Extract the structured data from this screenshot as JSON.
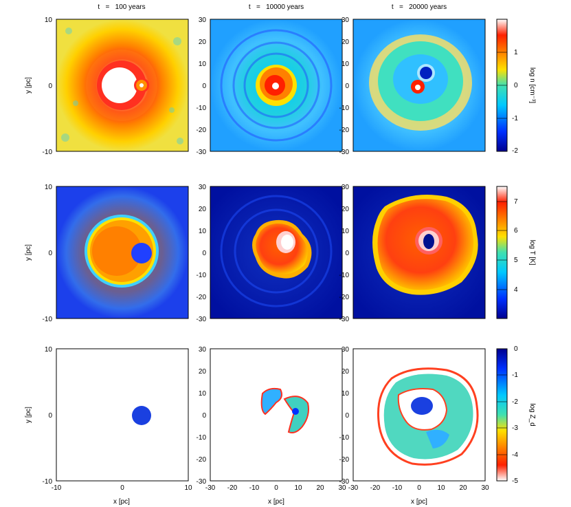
{
  "colors": {
    "density_bar": [
      "#00008f",
      "#0030ff",
      "#00c8ff",
      "#40e0b0",
      "#ffe000",
      "#ff8000",
      "#ff2000",
      "#ffffff"
    ],
    "temp_bar": [
      "#00008f",
      "#0030ff",
      "#00c8ff",
      "#40e0b0",
      "#ffe000",
      "#ff8000",
      "#ff2000",
      "#ffffff"
    ],
    "metal_bar": [
      "#ffffff",
      "#ff2000",
      "#ff8000",
      "#ffe000",
      "#40e0b0",
      "#00c8ff",
      "#0030ff",
      "#00008f"
    ]
  },
  "columns": [
    {
      "title": "t   =   100 years"
    },
    {
      "title": "t   =   10000 years"
    },
    {
      "title": "t   =   20000 years"
    }
  ],
  "rows": [
    {
      "colorbar_label": "log n [cm⁻³]",
      "colorbar_ticks": [
        "1",
        "0",
        "-1",
        "-2"
      ],
      "colorbar_range": [
        -2.0,
        2.0
      ]
    },
    {
      "colorbar_label": "log T [K]",
      "colorbar_ticks": [
        "7",
        "6",
        "5",
        "4"
      ],
      "colorbar_range": [
        3.0,
        7.5
      ]
    },
    {
      "colorbar_label": "log Z_d",
      "colorbar_ticks": [
        "0",
        "-1",
        "-2",
        "-3",
        "-4",
        "-5"
      ],
      "colorbar_range": [
        -5.0,
        0.0
      ]
    }
  ],
  "axes": {
    "ylabel": "y [pc]",
    "xlabel": "x [pc]",
    "col1_ticks": [
      "10",
      "0",
      "-10"
    ],
    "col1_xticks": [
      "-10",
      "0",
      "10"
    ],
    "col23_yticks": [
      "30",
      "20",
      "10",
      "0",
      "-10",
      "-20",
      "-30"
    ],
    "col2_xticks": [
      "-30",
      "-20",
      "-10",
      "0",
      "10",
      "20",
      "30"
    ],
    "col3_xticks": [
      "-30",
      "-20",
      "-10",
      "0",
      "10",
      "20",
      "30"
    ]
  }
}
